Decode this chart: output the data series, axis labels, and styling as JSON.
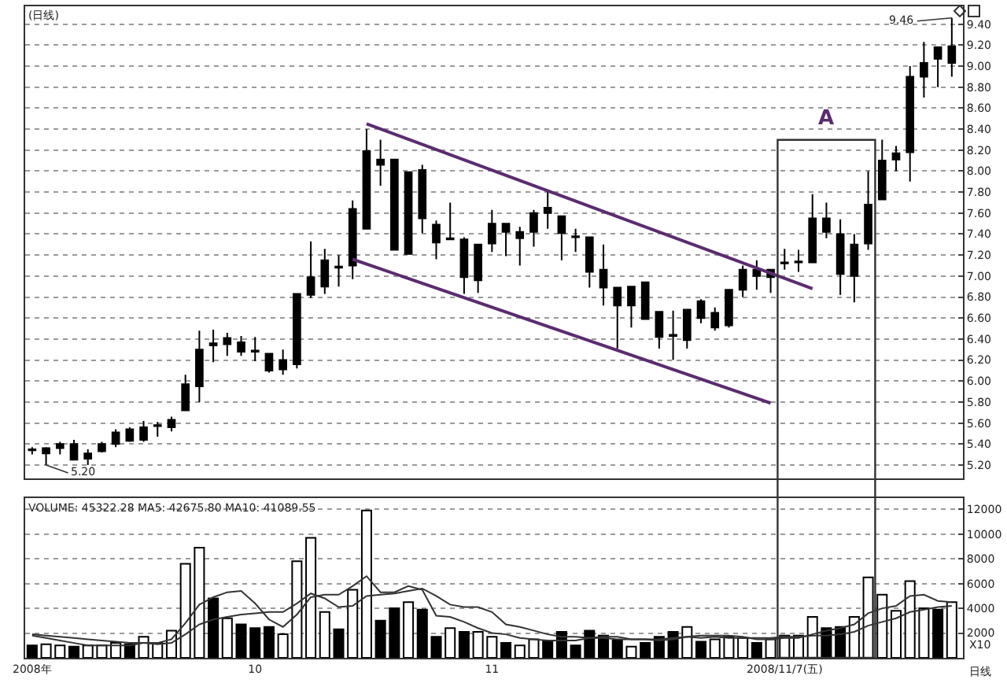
{
  "chart_data": [
    {
      "type": "candlestick",
      "title": "(日线)",
      "categories": [
        null,
        null,
        null,
        null,
        null,
        null,
        null,
        null,
        null,
        null,
        null,
        null,
        null,
        null,
        null,
        null,
        null,
        null,
        null,
        null,
        null,
        null,
        null,
        null,
        null,
        null,
        null,
        null,
        null,
        null,
        null,
        null,
        null,
        null,
        null,
        null,
        null,
        null,
        null,
        null,
        null,
        null,
        null,
        null,
        null,
        null,
        null,
        null,
        null,
        null,
        null,
        null,
        null,
        null,
        null,
        null,
        null,
        null,
        null,
        null,
        null,
        null,
        null,
        null,
        null,
        null,
        null
      ],
      "ohlc": [
        [
          5.34,
          5.37,
          5.3,
          5.35
        ],
        [
          5.31,
          5.37,
          5.2,
          5.36
        ],
        [
          5.36,
          5.42,
          5.3,
          5.4
        ],
        [
          5.25,
          5.44,
          5.25,
          5.4
        ],
        [
          5.26,
          5.35,
          5.2,
          5.31
        ],
        [
          5.33,
          5.42,
          5.32,
          5.4
        ],
        [
          5.4,
          5.54,
          5.37,
          5.51
        ],
        [
          5.43,
          5.56,
          5.42,
          5.54
        ],
        [
          5.44,
          5.62,
          5.42,
          5.56
        ],
        [
          5.57,
          5.61,
          5.47,
          5.58
        ],
        [
          5.56,
          5.66,
          5.52,
          5.63
        ],
        [
          5.72,
          6.06,
          5.72,
          5.97
        ],
        [
          5.95,
          6.48,
          5.8,
          6.3
        ],
        [
          6.34,
          6.49,
          6.18,
          6.36
        ],
        [
          6.35,
          6.46,
          6.24,
          6.41
        ],
        [
          6.28,
          6.43,
          6.24,
          6.37
        ],
        [
          6.28,
          6.42,
          6.19,
          6.29
        ],
        [
          6.1,
          6.26,
          6.08,
          6.26
        ],
        [
          6.11,
          6.3,
          6.06,
          6.2
        ],
        [
          6.16,
          6.83,
          6.12,
          6.83
        ],
        [
          6.82,
          7.33,
          6.79,
          6.99
        ],
        [
          6.9,
          7.26,
          6.83,
          7.15
        ],
        [
          7.08,
          7.2,
          6.9,
          7.09
        ],
        [
          7.1,
          7.72,
          6.97,
          7.64
        ],
        [
          7.45,
          8.4,
          7.45,
          8.19
        ],
        [
          8.06,
          8.3,
          7.86,
          8.11
        ],
        [
          7.25,
          8.11,
          7.25,
          8.11
        ],
        [
          7.21,
          7.99,
          7.21,
          7.99
        ],
        [
          7.55,
          8.06,
          7.41,
          8.01
        ],
        [
          7.32,
          7.53,
          7.16,
          7.49
        ],
        [
          7.35,
          7.7,
          7.35,
          7.36
        ],
        [
          6.99,
          7.37,
          6.83,
          7.35
        ],
        [
          6.96,
          7.3,
          6.84,
          7.3
        ],
        [
          7.31,
          7.63,
          7.23,
          7.5
        ],
        [
          7.42,
          7.5,
          7.19,
          7.5
        ],
        [
          7.36,
          7.47,
          7.1,
          7.42
        ],
        [
          7.42,
          7.63,
          7.28,
          7.6
        ],
        [
          7.6,
          7.81,
          7.45,
          7.65
        ],
        [
          7.41,
          7.57,
          7.15,
          7.57
        ],
        [
          7.37,
          7.45,
          7.23,
          7.38
        ],
        [
          7.04,
          7.37,
          6.89,
          7.37
        ],
        [
          6.89,
          7.3,
          6.72,
          7.06
        ],
        [
          6.72,
          6.89,
          6.31,
          6.89
        ],
        [
          6.72,
          6.9,
          6.51,
          6.9
        ],
        [
          6.59,
          6.94,
          6.59,
          6.94
        ],
        [
          6.42,
          6.66,
          6.31,
          6.66
        ],
        [
          6.43,
          6.67,
          6.2,
          6.44
        ],
        [
          6.39,
          6.68,
          6.31,
          6.68
        ],
        [
          6.6,
          6.78,
          6.55,
          6.76
        ],
        [
          6.51,
          6.7,
          6.48,
          6.65
        ],
        [
          6.53,
          6.87,
          6.51,
          6.87
        ],
        [
          6.87,
          7.1,
          6.8,
          7.06
        ],
        [
          7.0,
          7.15,
          6.87,
          7.06
        ],
        [
          6.99,
          7.06,
          6.84,
          7.06
        ],
        [
          7.12,
          7.26,
          7.06,
          7.13
        ],
        [
          7.13,
          7.25,
          7.04,
          7.14
        ],
        [
          7.13,
          7.78,
          7.13,
          7.55
        ],
        [
          7.42,
          7.7,
          7.36,
          7.55
        ],
        [
          7.02,
          7.54,
          6.82,
          7.4
        ],
        [
          7.0,
          7.4,
          6.75,
          7.3
        ],
        [
          7.31,
          8.0,
          7.25,
          7.68
        ],
        [
          7.73,
          8.3,
          7.73,
          8.1
        ],
        [
          8.11,
          8.24,
          8.0,
          8.17
        ],
        [
          8.18,
          9.0,
          7.9,
          8.9
        ],
        [
          8.9,
          9.23,
          8.7,
          9.03
        ],
        [
          9.07,
          9.18,
          8.8,
          9.18
        ],
        [
          9.03,
          9.46,
          8.9,
          9.19
        ]
      ],
      "color": "#000000",
      "series": [
        {
          "type": "line",
          "values": [
            null,
            null,
            null,
            null,
            null,
            null,
            null,
            null,
            null,
            null,
            null,
            null,
            null,
            null,
            null,
            null,
            null,
            null,
            null,
            null,
            null,
            null,
            null,
            null,
            8.45,
            null,
            null,
            null,
            null,
            null,
            null,
            null,
            null,
            null,
            null,
            null,
            null,
            null,
            null,
            null,
            null,
            null,
            null,
            null,
            null,
            null,
            null,
            null,
            null,
            null,
            null,
            null,
            null,
            null,
            null,
            null,
            6.88,
            null,
            null,
            null,
            null,
            null,
            null,
            null,
            null,
            null,
            null
          ],
          "color": "#5b2c6f"
        },
        {
          "type": "line",
          "values": [
            null,
            null,
            null,
            null,
            null,
            null,
            null,
            null,
            null,
            null,
            null,
            null,
            null,
            null,
            null,
            null,
            null,
            null,
            null,
            null,
            null,
            null,
            null,
            7.16,
            null,
            null,
            null,
            null,
            null,
            null,
            null,
            null,
            null,
            null,
            null,
            null,
            null,
            null,
            null,
            null,
            null,
            null,
            null,
            null,
            null,
            null,
            null,
            null,
            null,
            null,
            null,
            null,
            null,
            5.79,
            null,
            null,
            null,
            null,
            null,
            null,
            null,
            null,
            null,
            null,
            null,
            null,
            null
          ],
          "color": "#5b2c6f"
        }
      ],
      "annotations": [
        "A",
        {
          "text": "5.20",
          "y": 5.2
        },
        "9.46"
      ],
      "ylim": [
        5.07,
        9.57
      ],
      "yticks": [
        {
          "value": 5.2,
          "label": "5.20"
        },
        {
          "value": 5.4,
          "label": "5.40"
        },
        {
          "value": 5.6,
          "label": "5.60"
        },
        {
          "value": 5.8,
          "label": "5.80"
        },
        {
          "value": 6,
          "label": "6.00"
        },
        {
          "value": 6.2,
          "label": "6.20"
        },
        {
          "value": 6.4,
          "label": "6.40"
        },
        {
          "value": 6.6,
          "label": "6.60"
        },
        {
          "value": 6.8,
          "label": "6.80"
        },
        {
          "value": 7,
          "label": "7.00"
        },
        {
          "value": 7.2,
          "label": "7.20"
        },
        {
          "value": 7.4,
          "label": "7.40"
        },
        {
          "value": 7.6,
          "label": "7.60"
        },
        {
          "value": 7.8,
          "label": "7.80"
        },
        {
          "value": 8,
          "label": "8.00"
        },
        {
          "value": 8.2,
          "label": "8.20"
        },
        {
          "value": 8.4,
          "label": "8.40"
        },
        {
          "value": 8.6,
          "label": "8.60"
        },
        {
          "value": 8.8,
          "label": "8.80"
        },
        {
          "value": 9,
          "label": "9.00"
        },
        {
          "value": 9.2,
          "label": "9.20"
        },
        {
          "value": 9.4,
          "label": "9.40"
        }
      ],
      "grid": "y",
      "tick_labels": "y"
    },
    {
      "type": "bar",
      "title": "VOLUME: 45322.28 MA5: 42675.80 MA10: 41089.55",
      "ylabel": "X10",
      "xlabel": "日线",
      "categories": [
        "2008年",
        null,
        null,
        null,
        null,
        null,
        null,
        null,
        null,
        null,
        null,
        null,
        null,
        null,
        null,
        null,
        "10",
        null,
        null,
        null,
        null,
        null,
        null,
        null,
        null,
        null,
        null,
        null,
        null,
        null,
        null,
        null,
        null,
        "11",
        null,
        null,
        null,
        null,
        null,
        null,
        null,
        null,
        null,
        null,
        null,
        null,
        null,
        null,
        null,
        null,
        null,
        null,
        null,
        null,
        "2008/11/7(五)",
        null,
        null,
        null,
        null,
        null,
        null,
        null,
        null,
        null,
        null,
        null,
        null
      ],
      "values": [
        1000,
        1100,
        1000,
        900,
        1000,
        1000,
        1200,
        1100,
        1700,
        1200,
        2200,
        7600,
        8900,
        4800,
        3200,
        2700,
        2400,
        2500,
        1900,
        7800,
        9700,
        3700,
        2300,
        5500,
        11900,
        3000,
        4000,
        4500,
        3900,
        1700,
        2400,
        2100,
        2100,
        1700,
        1200,
        1000,
        1500,
        1400,
        2100,
        1000,
        2200,
        1800,
        1400,
        900,
        1200,
        1700,
        2100,
        2500,
        1300,
        1500,
        1700,
        1600,
        1200,
        1500,
        1800,
        1800,
        3300,
        2400,
        2500,
        3300,
        6500,
        5100,
        3800,
        6200,
        4000,
        3900,
        4500
      ],
      "colors": [
        "#000000",
        "#ffffff",
        "#ffffff",
        "#000000",
        "#ffffff",
        "#ffffff",
        "#ffffff",
        "#000000",
        "#ffffff",
        "#ffffff",
        "#ffffff",
        "#ffffff",
        "#ffffff",
        "#000000",
        "#ffffff",
        "#000000",
        "#000000",
        "#000000",
        "#ffffff",
        "#ffffff",
        "#ffffff",
        "#ffffff",
        "#000000",
        "#ffffff",
        "#ffffff",
        "#000000",
        "#000000",
        "#ffffff",
        "#000000",
        "#000000",
        "#ffffff",
        "#000000",
        "#ffffff",
        "#ffffff",
        "#000000",
        "#ffffff",
        "#ffffff",
        "#000000",
        "#000000",
        "#000000",
        "#000000",
        "#000000",
        "#000000",
        "#ffffff",
        "#000000",
        "#000000",
        "#000000",
        "#ffffff",
        "#000000",
        "#ffffff",
        "#ffffff",
        "#ffffff",
        "#000000",
        "#ffffff",
        "#ffffff",
        "#ffffff",
        "#ffffff",
        "#000000",
        "#000000",
        "#ffffff",
        "#ffffff",
        "#ffffff",
        "#ffffff",
        "#ffffff",
        "#ffffff",
        "#000000",
        "#ffffff"
      ],
      "series": [
        {
          "type": "line",
          "color": "#333333",
          "values": [
            1800,
            1600,
            1400,
            1200,
            1000,
            1000,
            1000,
            1000,
            1200,
            1200,
            1500,
            2800,
            4300,
            4900,
            5300,
            5400,
            4400,
            3100,
            2500,
            3500,
            4900,
            5100,
            5100,
            5800,
            6600,
            5300,
            5300,
            5800,
            5500,
            3400,
            3300,
            2900,
            2400,
            2000,
            1900,
            1600,
            1500,
            1400,
            1400,
            1400,
            1600,
            1700,
            1700,
            1500,
            1500,
            1400,
            1500,
            1700,
            1800,
            1800,
            1800,
            1700,
            1500,
            1500,
            1600,
            1600,
            1900,
            2200,
            2400,
            2700,
            3600,
            4000,
            4200,
            5000,
            5100,
            4600,
            4500
          ]
        },
        {
          "type": "line",
          "color": "#333333",
          "values": [
            1900,
            1800,
            1700,
            1600,
            1500,
            1400,
            1300,
            1200,
            1200,
            1100,
            1200,
            1900,
            2700,
            3100,
            3300,
            3500,
            3600,
            3700,
            3700,
            4400,
            5200,
            4800,
            4100,
            4200,
            5000,
            5100,
            5200,
            5400,
            5600,
            5000,
            4300,
            4100,
            4100,
            3700,
            2700,
            2500,
            2200,
            1900,
            1700,
            1700,
            1600,
            1600,
            1500,
            1500,
            1500,
            1500,
            1600,
            1700,
            1600,
            1700,
            1600,
            1600,
            1600,
            1600,
            1700,
            1700,
            1800,
            1800,
            1900,
            2100,
            2600,
            2900,
            3200,
            3700,
            3900,
            4100,
            4200
          ]
        }
      ],
      "ylim": [
        0,
        12900
      ],
      "yticks": [
        2000,
        4000,
        6000,
        8000,
        10000,
        12000
      ],
      "grid": "y"
    }
  ]
}
